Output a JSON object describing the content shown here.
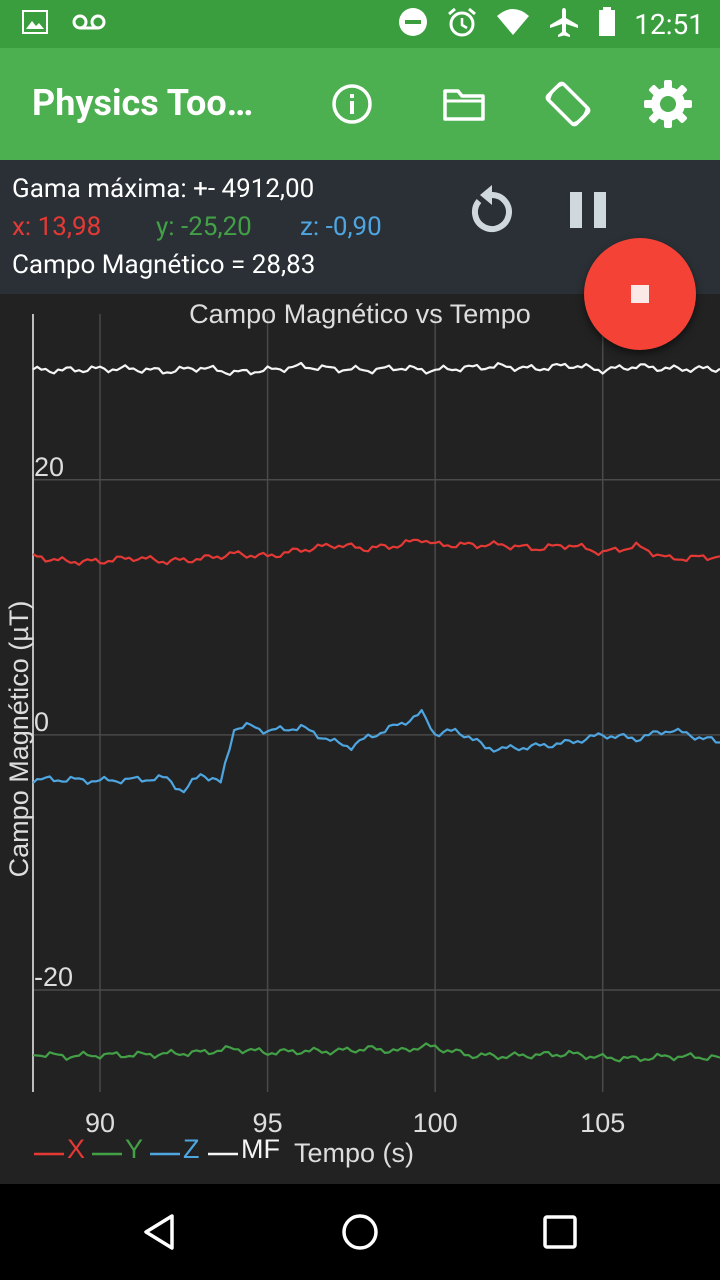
{
  "status_bar": {
    "time": "12:51",
    "icons": [
      "image-icon",
      "voicemail-icon",
      "do-not-disturb-icon",
      "alarm-icon",
      "wifi-icon",
      "airplane-icon",
      "battery-icon"
    ]
  },
  "toolbar": {
    "title": "Physics Too…",
    "icons": [
      "info-icon",
      "folder-icon",
      "screen-rotation-icon",
      "settings-icon"
    ]
  },
  "info": {
    "range_label": "Gama máxima: +- 4912,00",
    "x_label": "x: 13,98",
    "y_label": "y: -25,20",
    "z_label": "z: -0,90",
    "field_label": "Campo Magnético =  28,83"
  },
  "colors": {
    "x": "#e53935",
    "y": "#43a047",
    "z": "#4ea5e0",
    "mf": "#f5f5f5",
    "toolbar": "#4caf50",
    "fab": "#f44336"
  },
  "chart_data": {
    "type": "line",
    "title": "Campo Magnético vs Tempo",
    "xlabel": "Tempo (s)",
    "ylabel": "Campo Magnético (µT)",
    "xlim": [
      88.0,
      108.5
    ],
    "ylim": [
      -28,
      33
    ],
    "x_ticks": [
      90,
      95,
      100,
      105
    ],
    "y_ticks": [
      -20,
      0,
      20
    ],
    "grid": true,
    "legend_position": "bottom-left",
    "series": [
      {
        "name": "X",
        "color": "#e53935",
        "x": [
          88,
          89,
          90,
          91,
          92,
          93,
          94,
          95,
          96,
          97,
          98,
          99,
          99.6,
          100,
          101,
          102,
          103,
          104,
          105,
          106,
          107,
          108.5
        ],
        "y": [
          14.0,
          13.6,
          13.6,
          13.9,
          13.6,
          13.8,
          14.2,
          14.0,
          14.5,
          14.9,
          14.6,
          14.9,
          15.4,
          14.9,
          14.9,
          14.9,
          14.6,
          14.9,
          14.3,
          14.8,
          13.8,
          14.0
        ]
      },
      {
        "name": "Y",
        "color": "#43a047",
        "x": [
          88,
          89,
          90,
          91,
          92,
          93,
          94,
          95,
          96,
          97,
          98,
          99,
          99.6,
          100,
          101,
          102,
          103,
          104,
          105,
          106,
          107,
          108.5
        ],
        "y": [
          -25.0,
          -25.2,
          -25.1,
          -25.1,
          -25.0,
          -24.9,
          -24.6,
          -24.9,
          -24.8,
          -24.8,
          -24.6,
          -24.8,
          -24.4,
          -24.5,
          -25.1,
          -25.2,
          -25.1,
          -25.0,
          -25.3,
          -25.4,
          -25.2,
          -25.3
        ]
      },
      {
        "name": "Z",
        "color": "#4ea5e0",
        "x": [
          88,
          89,
          90,
          91,
          92,
          92.5,
          93,
          93.6,
          94,
          94.5,
          95,
          96,
          97,
          97.5,
          98,
          99,
          99.6,
          100,
          100.6,
          101,
          101.5,
          102,
          103,
          104,
          105,
          106,
          107,
          108.5
        ],
        "y": [
          -3.5,
          -3.5,
          -3.6,
          -3.5,
          -3.4,
          -4.5,
          -3.0,
          -3.8,
          0.5,
          0.7,
          0.3,
          0.6,
          -0.6,
          -0.9,
          -0.2,
          0.9,
          1.7,
          0.1,
          0.3,
          -0.1,
          -1.0,
          -1.1,
          -0.9,
          -0.6,
          0.0,
          -0.3,
          0.4,
          -0.6
        ]
      },
      {
        "name": "MF",
        "color": "#f5f5f5",
        "x": [
          88,
          89,
          90,
          91,
          92,
          93,
          94,
          95,
          96,
          97,
          98,
          99,
          99.6,
          100,
          101,
          102,
          103,
          104,
          105,
          106,
          107,
          108.5
        ],
        "y": [
          28.6,
          28.6,
          28.7,
          28.7,
          28.5,
          28.8,
          28.4,
          28.6,
          28.9,
          28.7,
          28.6,
          28.8,
          28.6,
          28.6,
          28.8,
          28.9,
          28.7,
          29.0,
          28.6,
          28.9,
          28.7,
          28.7
        ]
      }
    ]
  }
}
